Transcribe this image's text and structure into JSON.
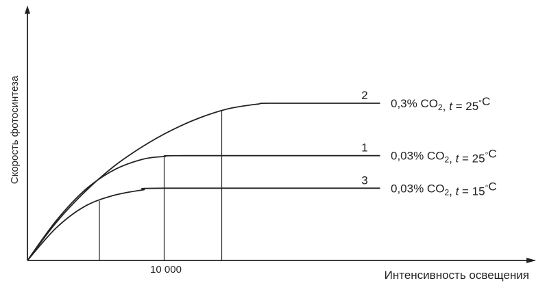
{
  "chart_data": {
    "type": "line",
    "xlabel": "Интенсивность освещения",
    "ylabel": "Скорость фотосинтеза",
    "xticks": [
      {
        "value": 10000,
        "label": "10 000"
      }
    ],
    "xlim": [
      0,
      25000
    ],
    "ylim": [
      0,
      1.0
    ],
    "series": [
      {
        "name": "0,3% CO₂, t = 25°C",
        "curve_label": "2",
        "x": [
          0,
          2000,
          4000,
          6000,
          8000,
          10000,
          12000,
          14000,
          16000,
          17000,
          24500
        ],
        "y": [
          0,
          0.21,
          0.38,
          0.52,
          0.63,
          0.72,
          0.79,
          0.84,
          0.865,
          0.87,
          0.87
        ],
        "marker_x": 13500
      },
      {
        "name": "0,03% CO₂, t = 25°C",
        "curve_label": "1",
        "x": [
          0,
          2000,
          4000,
          6000,
          8000,
          9500,
          11000,
          24500
        ],
        "y": [
          0,
          0.22,
          0.39,
          0.5,
          0.56,
          0.575,
          0.58,
          0.58
        ],
        "marker_x": 9500
      },
      {
        "name": "0,03% CO₂, t = 15°C",
        "curve_label": "3",
        "x": [
          0,
          2000,
          4000,
          6000,
          8000,
          9500,
          24500
        ],
        "y": [
          0,
          0.18,
          0.3,
          0.36,
          0.39,
          0.4,
          0.4
        ],
        "marker_x": 5000
      }
    ]
  },
  "colors": {
    "axis": "#222222",
    "curve": "#222222",
    "background": "#ffffff"
  }
}
